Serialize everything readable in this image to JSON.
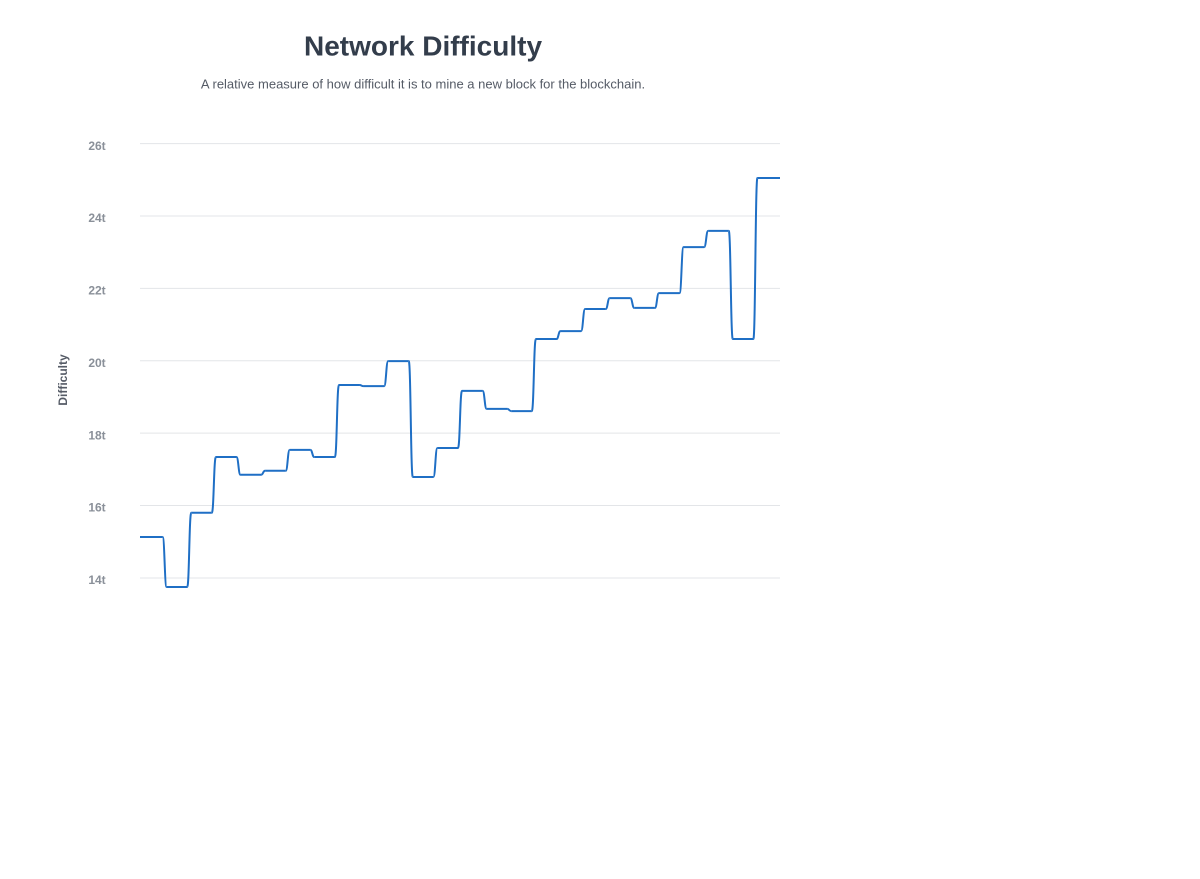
{
  "chart_data": {
    "type": "step",
    "title": "Network Difficulty",
    "subtitle": "A relative measure of how difficult it is to mine a new block for the blockchain.",
    "y_label": "Difficulty",
    "categories": [
      null,
      null,
      null,
      null,
      null,
      null,
      null,
      null,
      null,
      null,
      null,
      null,
      null,
      null,
      null,
      null,
      null,
      null,
      null,
      null,
      null,
      null,
      null,
      null,
      null,
      null
    ],
    "series": [
      {
        "color": "#1f6fc5",
        "values": [
          15.13,
          13.75,
          15.8,
          17.34,
          16.85,
          16.96,
          17.54,
          17.34,
          19.33,
          19.3,
          19.99,
          16.79,
          17.59,
          19.17,
          18.67,
          18.61,
          20.6,
          20.82,
          21.43,
          21.73,
          21.46,
          21.87,
          23.14,
          23.59,
          20.6,
          25.05
        ]
      }
    ],
    "ylim": [
      13.75,
      26
    ],
    "yticks": [
      {
        "value": 14,
        "label": "14t"
      },
      {
        "value": 16,
        "label": "16t"
      },
      {
        "value": 18,
        "label": "18t"
      },
      {
        "value": 20,
        "label": "20t"
      },
      {
        "value": 22,
        "label": "22t"
      },
      {
        "value": 24,
        "label": "24t"
      },
      {
        "value": 26,
        "label": "26t"
      }
    ],
    "grid": true
  }
}
